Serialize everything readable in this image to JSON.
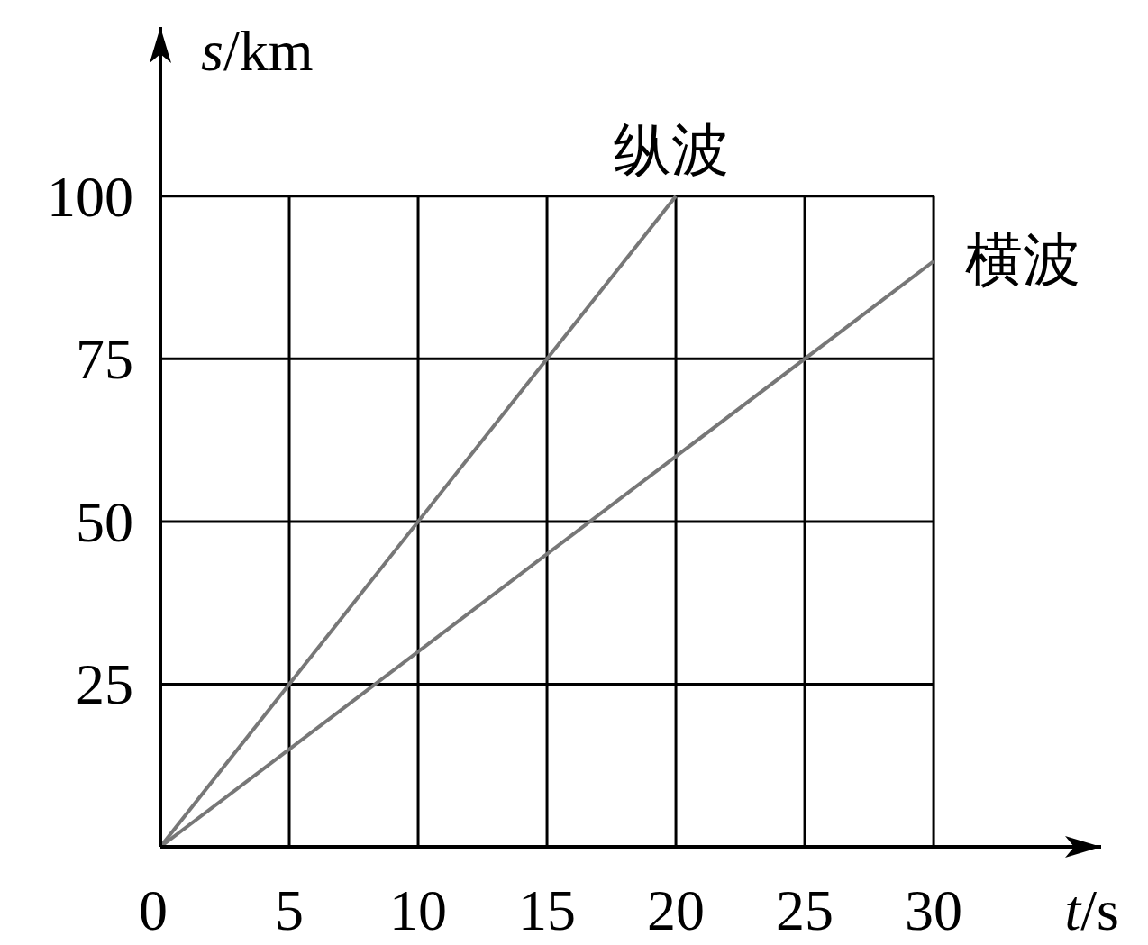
{
  "chart_data": {
    "type": "line",
    "xlabel": "t/s",
    "ylabel": "s/km",
    "series": [
      {
        "name": "纵波",
        "color": "#777777",
        "x": [
          0,
          20
        ],
        "values": [
          0,
          100
        ]
      },
      {
        "name": "横波",
        "color": "#777777",
        "x": [
          0,
          30
        ],
        "values": [
          0,
          90
        ]
      }
    ],
    "xlim": [
      0,
      36.5
    ],
    "ylim": [
      0,
      126
    ],
    "xticks": [
      0,
      5,
      10,
      15,
      20,
      25,
      30
    ],
    "yticks": [
      25,
      50,
      75,
      100
    ],
    "grid": true
  }
}
